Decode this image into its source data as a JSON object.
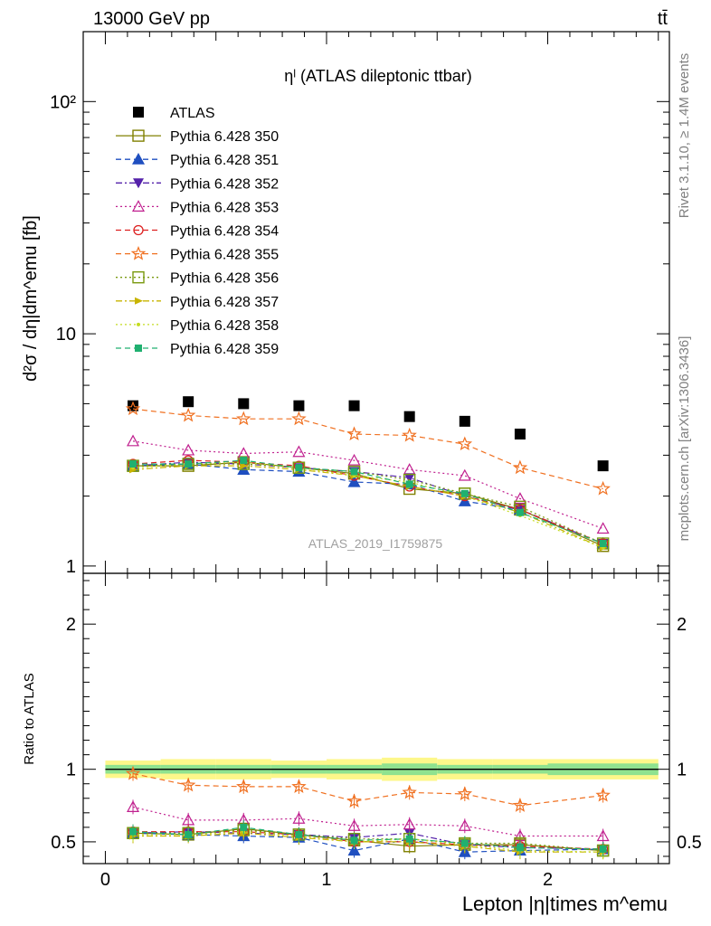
{
  "header": {
    "left": "13000 GeV pp",
    "right": "tt̄"
  },
  "side_text": {
    "rivet": "Rivet 3.1.10, ≥ 1.4M events",
    "mcplots": "mcplots.cern.ch [arXiv:1306.3436]"
  },
  "chart_data": [
    {
      "type": "scatter",
      "title": "ηˡ (ATLAS dileptonic ttbar)",
      "watermark": "ATLAS_2019_I1759875",
      "ylabel": "d²σ / dη|dm^emu [fb]",
      "xlabel": "Lepton |η|times m^emu",
      "yscale": "log",
      "xlim": [
        -0.1,
        2.55
      ],
      "ylim": [
        0.93,
        200
      ],
      "y_ticks": [
        "1",
        "10",
        "10²"
      ],
      "x": [
        0.125,
        0.375,
        0.625,
        0.875,
        1.125,
        1.375,
        1.625,
        1.875,
        2.25
      ],
      "series": [
        {
          "name": "ATLAS",
          "color": "#000000",
          "marker": "square-filled",
          "line": "none",
          "values": [
            4.9,
            5.1,
            5.0,
            4.9,
            4.9,
            4.4,
            4.2,
            3.7,
            2.7
          ]
        },
        {
          "name": "Pythia 6.428 350",
          "color": "#808000",
          "marker": "square-open",
          "line": "solid",
          "values": [
            2.7,
            2.7,
            2.8,
            2.65,
            2.5,
            2.15,
            2.05,
            1.75,
            1.22
          ]
        },
        {
          "name": "Pythia 6.428 351",
          "color": "#1f4fc0",
          "marker": "triangle-up-filled",
          "line": "dashed",
          "values": [
            2.7,
            2.75,
            2.6,
            2.55,
            2.3,
            2.25,
            1.9,
            1.75,
            1.25
          ]
        },
        {
          "name": "Pythia 6.428 352",
          "color": "#5522aa",
          "marker": "triangle-down-filled",
          "line": "dashdot",
          "values": [
            2.7,
            2.8,
            2.75,
            2.65,
            2.55,
            2.4,
            2.0,
            1.75,
            1.25
          ]
        },
        {
          "name": "Pythia 6.428 353",
          "color": "#c0208f",
          "marker": "triangle-up-open",
          "line": "dotted",
          "values": [
            3.45,
            3.15,
            3.05,
            3.1,
            2.85,
            2.6,
            2.45,
            1.95,
            1.45
          ]
        },
        {
          "name": "Pythia 6.428 354",
          "color": "#dd2020",
          "marker": "circle-open",
          "line": "dashed",
          "values": [
            2.75,
            2.85,
            2.8,
            2.7,
            2.45,
            2.2,
            2.0,
            1.75,
            1.25
          ]
        },
        {
          "name": "Pythia 6.428 355",
          "color": "#f07020",
          "marker": "star-open",
          "line": "dashed",
          "values": [
            4.75,
            4.45,
            4.3,
            4.3,
            3.7,
            3.65,
            3.35,
            2.65,
            2.15
          ]
        },
        {
          "name": "Pythia 6.428 356",
          "color": "#7a9a10",
          "marker": "square-open",
          "line": "dotted",
          "values": [
            2.7,
            2.75,
            2.75,
            2.65,
            2.55,
            2.35,
            2.05,
            1.8,
            1.25
          ]
        },
        {
          "name": "Pythia 6.428 357",
          "color": "#c8b400",
          "marker": "triangle-right-filled",
          "line": "dashdot",
          "values": [
            2.6,
            2.7,
            2.7,
            2.6,
            2.45,
            2.2,
            2.0,
            1.7,
            1.2
          ]
        },
        {
          "name": "Pythia 6.428 358",
          "color": "#c4dc20",
          "marker": "dot",
          "line": "dotted",
          "values": [
            2.65,
            2.75,
            2.8,
            2.65,
            2.45,
            2.3,
            2.0,
            1.65,
            1.2
          ]
        },
        {
          "name": "Pythia 6.428 359",
          "color": "#20b070",
          "marker": "square-filled-small",
          "line": "dashed",
          "values": [
            2.75,
            2.75,
            2.85,
            2.65,
            2.55,
            2.25,
            2.05,
            1.7,
            1.25
          ]
        }
      ]
    },
    {
      "type": "scatter",
      "ylabel": "Ratio to ATLAS",
      "xlabel": "Lepton |η|times m^emu",
      "xlim": [
        -0.1,
        2.55
      ],
      "ylim": [
        0.35,
        2.35
      ],
      "x_ticks": [
        "0",
        "1",
        "2"
      ],
      "y_ticks": [
        "0.5",
        "1",
        "2"
      ],
      "reference": 1.0,
      "band_outer": [
        0.06,
        0.07,
        0.07,
        0.06,
        0.07,
        0.08,
        0.07,
        0.07,
        0.07
      ],
      "band_inner": [
        0.03,
        0.03,
        0.03,
        0.03,
        0.03,
        0.04,
        0.03,
        0.03,
        0.04
      ],
      "ratios": [
        [
          0.56,
          0.55,
          0.59,
          0.55,
          0.51,
          0.47,
          0.48,
          0.48,
          0.44
        ],
        [
          0.56,
          0.55,
          0.54,
          0.53,
          0.44,
          0.52,
          0.43,
          0.44,
          0.45
        ],
        [
          0.56,
          0.57,
          0.56,
          0.55,
          0.53,
          0.56,
          0.48,
          0.46,
          0.45
        ],
        [
          0.74,
          0.65,
          0.65,
          0.66,
          0.61,
          0.62,
          0.61,
          0.54,
          0.54
        ],
        [
          0.57,
          0.57,
          0.57,
          0.55,
          0.5,
          0.5,
          0.48,
          0.47,
          0.45
        ],
        [
          0.97,
          0.89,
          0.88,
          0.88,
          0.78,
          0.84,
          0.83,
          0.75,
          0.82
        ],
        [
          0.56,
          0.56,
          0.58,
          0.55,
          0.52,
          0.52,
          0.49,
          0.49,
          0.44
        ],
        [
          0.54,
          0.54,
          0.56,
          0.53,
          0.5,
          0.5,
          0.47,
          0.43,
          0.43
        ],
        [
          0.55,
          0.55,
          0.57,
          0.54,
          0.5,
          0.52,
          0.48,
          0.44,
          0.43
        ],
        [
          0.57,
          0.55,
          0.6,
          0.55,
          0.51,
          0.52,
          0.49,
          0.46,
          0.45
        ]
      ]
    }
  ]
}
